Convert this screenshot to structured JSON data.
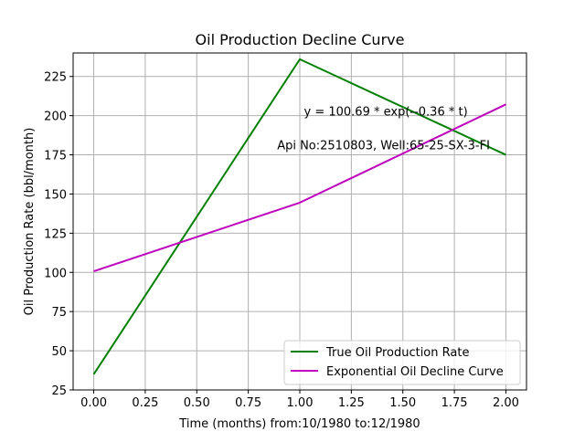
{
  "chart_data": {
    "type": "line",
    "title": "Oil Production Decline Curve",
    "xlabel": "Time (months) from:10/1980 to:12/1980",
    "ylabel": "Oil Production Rate (bbl/month)",
    "xlim": [
      -0.1,
      2.1
    ],
    "ylim": [
      25,
      240
    ],
    "xticks": [
      0.0,
      0.25,
      0.5,
      0.75,
      1.0,
      1.25,
      1.5,
      1.75,
      2.0
    ],
    "xtick_labels": [
      "0.00",
      "0.25",
      "0.50",
      "0.75",
      "1.00",
      "1.25",
      "1.50",
      "1.75",
      "2.00"
    ],
    "yticks": [
      25,
      50,
      75,
      100,
      125,
      150,
      175,
      200,
      225
    ],
    "ytick_labels": [
      "25",
      "50",
      "75",
      "100",
      "125",
      "150",
      "175",
      "200",
      "225"
    ],
    "grid": true,
    "legend_position": "lower-right",
    "series": [
      {
        "name": "True Oil Production Rate",
        "color": "#008000",
        "x": [
          0,
          1,
          2
        ],
        "y": [
          35,
          236,
          175
        ]
      },
      {
        "name": "Exponential Oil Decline Curve",
        "color": "#bf00bf",
        "x": [
          0,
          1,
          2
        ],
        "y": [
          100.69,
          144.5,
          207.2
        ]
      }
    ],
    "annotations": [
      {
        "text": "y = 100.69 * exp(--0.36 * t)",
        "x": 1.02,
        "y": 200
      },
      {
        "text": "Api No:2510803, Well:65-25-SX-3-FI",
        "x": 0.89,
        "y": 178.5
      }
    ]
  }
}
